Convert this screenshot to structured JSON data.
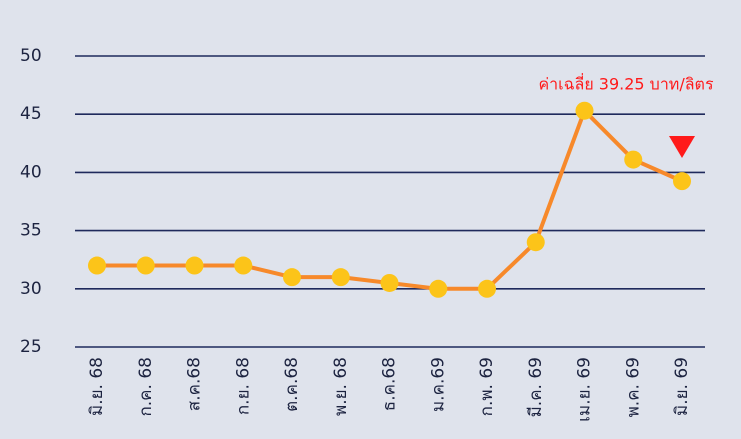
{
  "chart_data": {
    "type": "line",
    "categories": [
      "มิ.ย. 68",
      "ก.ค. 68",
      "ส.ค.68",
      "ก.ย. 68",
      "ต.ค.68",
      "พ.ย. 68",
      "ธ.ค.68",
      "ม.ค.69",
      "ก.พ. 69",
      "มี.ค. 69",
      "เม.ย. 69",
      "พ.ค. 69",
      "มิ.ย. 69"
    ],
    "series": [
      {
        "color": "#f7892a",
        "marker_color": "#fcc419",
        "values": [
          32,
          32,
          32,
          32,
          31,
          31,
          30.5,
          30,
          30,
          34,
          45.3,
          41.1,
          39.25
        ]
      }
    ],
    "annotation": "ค่าเฉลี่ย 39.25 บาท/ลิตร",
    "annotation_color": "#ff1a1a",
    "ylim": [
      25,
      50
    ],
    "yticks": [
      25,
      30,
      35,
      40,
      45,
      50
    ],
    "grid": true
  }
}
